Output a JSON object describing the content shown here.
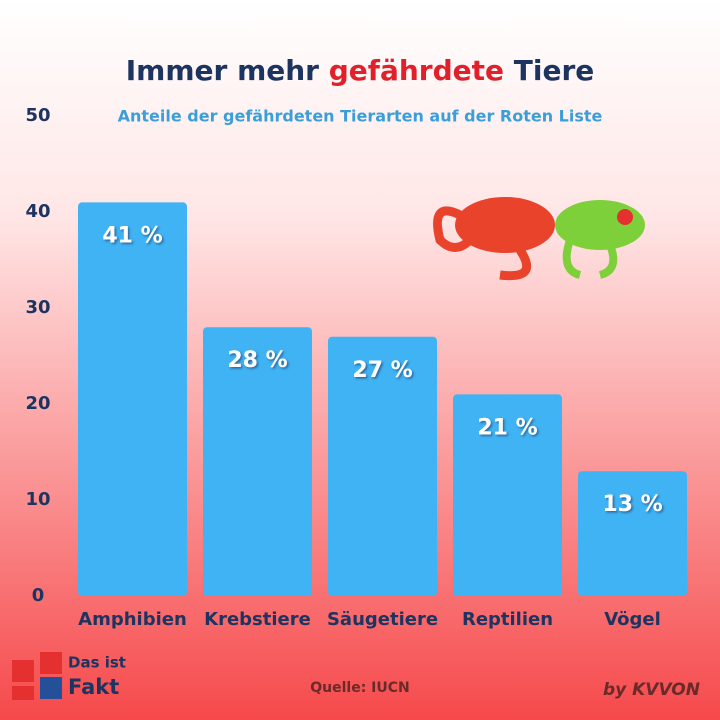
{
  "chart_data": {
    "type": "bar",
    "title_parts": [
      "Immer mehr",
      "gefährdete",
      "Tiere"
    ],
    "subtitle": "Anteile der gefährdeten Tierarten auf der Roten Liste",
    "categories": [
      "Amphibien",
      "Krebstiere",
      "Säugetiere",
      "Reptilien",
      "Vögel"
    ],
    "values": [
      41,
      28,
      27,
      21,
      13
    ],
    "value_labels": [
      "41 %",
      "28 %",
      "27 %",
      "21 %",
      "13 %"
    ],
    "color": "#3fb3f4",
    "ylim": [
      0,
      50
    ],
    "yticks": [
      0,
      10,
      20,
      30,
      40,
      50
    ],
    "grid": false,
    "source": "Quelle: IUCN",
    "logo": [
      "Das ist",
      "Fakt"
    ],
    "credit": "by KVVON"
  }
}
